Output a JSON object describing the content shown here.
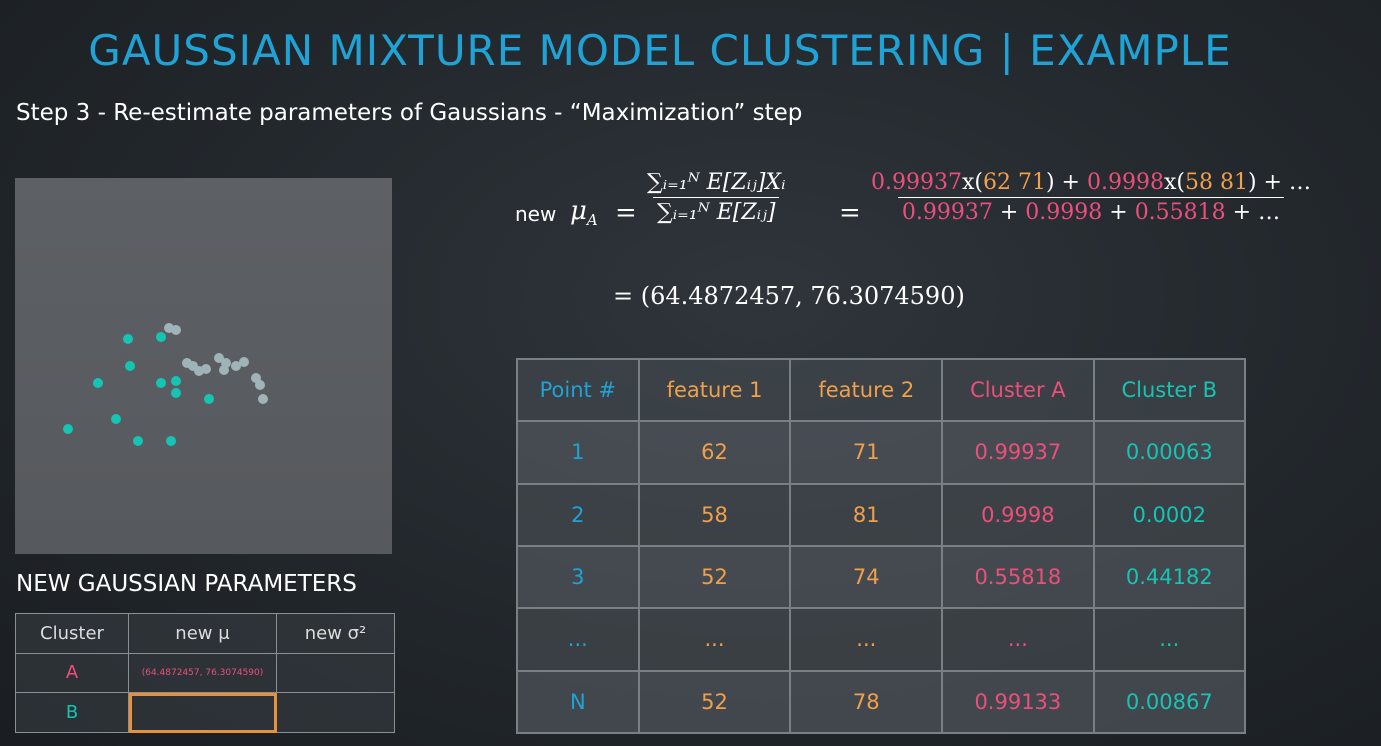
{
  "title": "GAUSSIAN MIXTURE MODEL CLUSTERING | EXAMPLE",
  "subtitle": "Step 3 - Re-estimate parameters of Gaussians - “Maximization” step",
  "formula": {
    "new_label": "new",
    "mu_symbol": "μ",
    "mu_sub": "A",
    "numerator_general": "∑ᵢ₌₁ᴺ E[Zᵢⱼ]Xᵢ",
    "denominator_general": "∑ᵢ₌₁ᴺ E[Zᵢⱼ]",
    "numerator_terms": [
      "0.99937",
      "x(",
      "62 71",
      ") + ",
      "0.9998",
      "x(",
      "58 81",
      ") + …"
    ],
    "denominator_terms": [
      "0.99937",
      " + ",
      "0.9998",
      " + ",
      "0.55818",
      " + …"
    ],
    "result": "= (64.4872457, 76.3074590)"
  },
  "points_table": {
    "headers": [
      "Point #",
      "feature 1",
      "feature 2",
      "Cluster A",
      "Cluster B"
    ],
    "rows": [
      [
        "1",
        "62",
        "71",
        "0.99937",
        "0.00063"
      ],
      [
        "2",
        "58",
        "81",
        "0.9998",
        "0.0002"
      ],
      [
        "3",
        "52",
        "74",
        "0.55818",
        "0.44182"
      ],
      [
        "...",
        "...",
        "...",
        "...",
        "..."
      ],
      [
        "N",
        "52",
        "78",
        "0.99133",
        "0.00867"
      ]
    ]
  },
  "params": {
    "title": "NEW GAUSSIAN PARAMETERS",
    "headers": [
      "Cluster",
      "new μ",
      "new σ²"
    ],
    "rows": [
      [
        "A",
        "(64.4872457, 76.3074590)",
        ""
      ],
      [
        "B",
        "",
        ""
      ]
    ]
  },
  "colors": {
    "title": "#1fa3d6",
    "feature": "#f0a04a",
    "cluster_a": "#ec4f7a",
    "cluster_b": "#16c4b4",
    "highlight": "#e8913a"
  },
  "scatter": {
    "teal_points": [
      [
        128,
        339
      ],
      [
        161,
        337
      ],
      [
        130,
        366
      ],
      [
        98,
        383
      ],
      [
        161,
        383
      ],
      [
        176,
        381
      ],
      [
        176,
        393
      ],
      [
        209,
        399
      ],
      [
        116,
        419
      ],
      [
        68,
        429
      ],
      [
        138,
        441
      ],
      [
        171,
        441
      ]
    ],
    "grey_points": [
      [
        169,
        328
      ],
      [
        176,
        330
      ],
      [
        187,
        363
      ],
      [
        193,
        366
      ],
      [
        199,
        371
      ],
      [
        206,
        369
      ],
      [
        219,
        358
      ],
      [
        226,
        363
      ],
      [
        236,
        366
      ],
      [
        244,
        362
      ],
      [
        256,
        378
      ],
      [
        260,
        385
      ],
      [
        263,
        399
      ],
      [
        224,
        370
      ]
    ]
  }
}
